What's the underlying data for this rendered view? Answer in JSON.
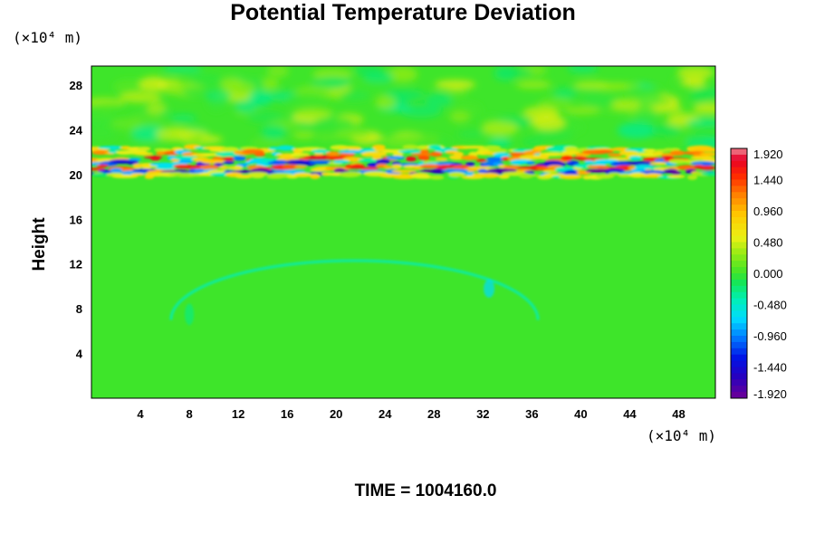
{
  "chart_data": {
    "type": "heatmap",
    "title": "Potential Temperature Deviation",
    "ylabel": "Height",
    "xlabel": "",
    "x_unit": "(×10⁴ m)",
    "y_unit": "(×10⁴ m)",
    "time_label": "TIME = 1004160.0",
    "xlim": [
      0,
      51
    ],
    "ylim": [
      0,
      29.7
    ],
    "x_ticks": [
      4,
      8,
      12,
      16,
      20,
      24,
      28,
      32,
      36,
      40,
      44,
      48
    ],
    "y_ticks": [
      4,
      8,
      12,
      16,
      20,
      24,
      28
    ],
    "colorbar": {
      "range": [
        -1.92,
        1.92
      ],
      "tick_labels": [
        "1.920",
        "1.440",
        "0.960",
        "0.480",
        "0.000",
        "-0.480",
        "-0.960",
        "-1.440",
        "-1.920"
      ],
      "tick_values": [
        1.92,
        1.44,
        0.96,
        0.48,
        0.0,
        -0.48,
        -0.96,
        -1.44,
        -1.92
      ]
    },
    "features": [
      {
        "description": "strong oscillating band of positive and negative deviation",
        "height_range": [
          19.7,
          22.5
        ],
        "min_value": -1.92,
        "max_value": 1.92
      },
      {
        "description": "wave pattern of weak positive deviation above band",
        "height_range": [
          22.5,
          29.7
        ],
        "min_value": -0.3,
        "max_value": 0.7
      },
      {
        "description": "arc-shaped weak negative deviation below band",
        "x_range": [
          6,
          37
        ],
        "height_range": [
          7,
          12.5
        ],
        "min_value": -0.9,
        "max_value": 0.0
      }
    ]
  },
  "colors": {
    "background_field": "#3ee52a"
  }
}
